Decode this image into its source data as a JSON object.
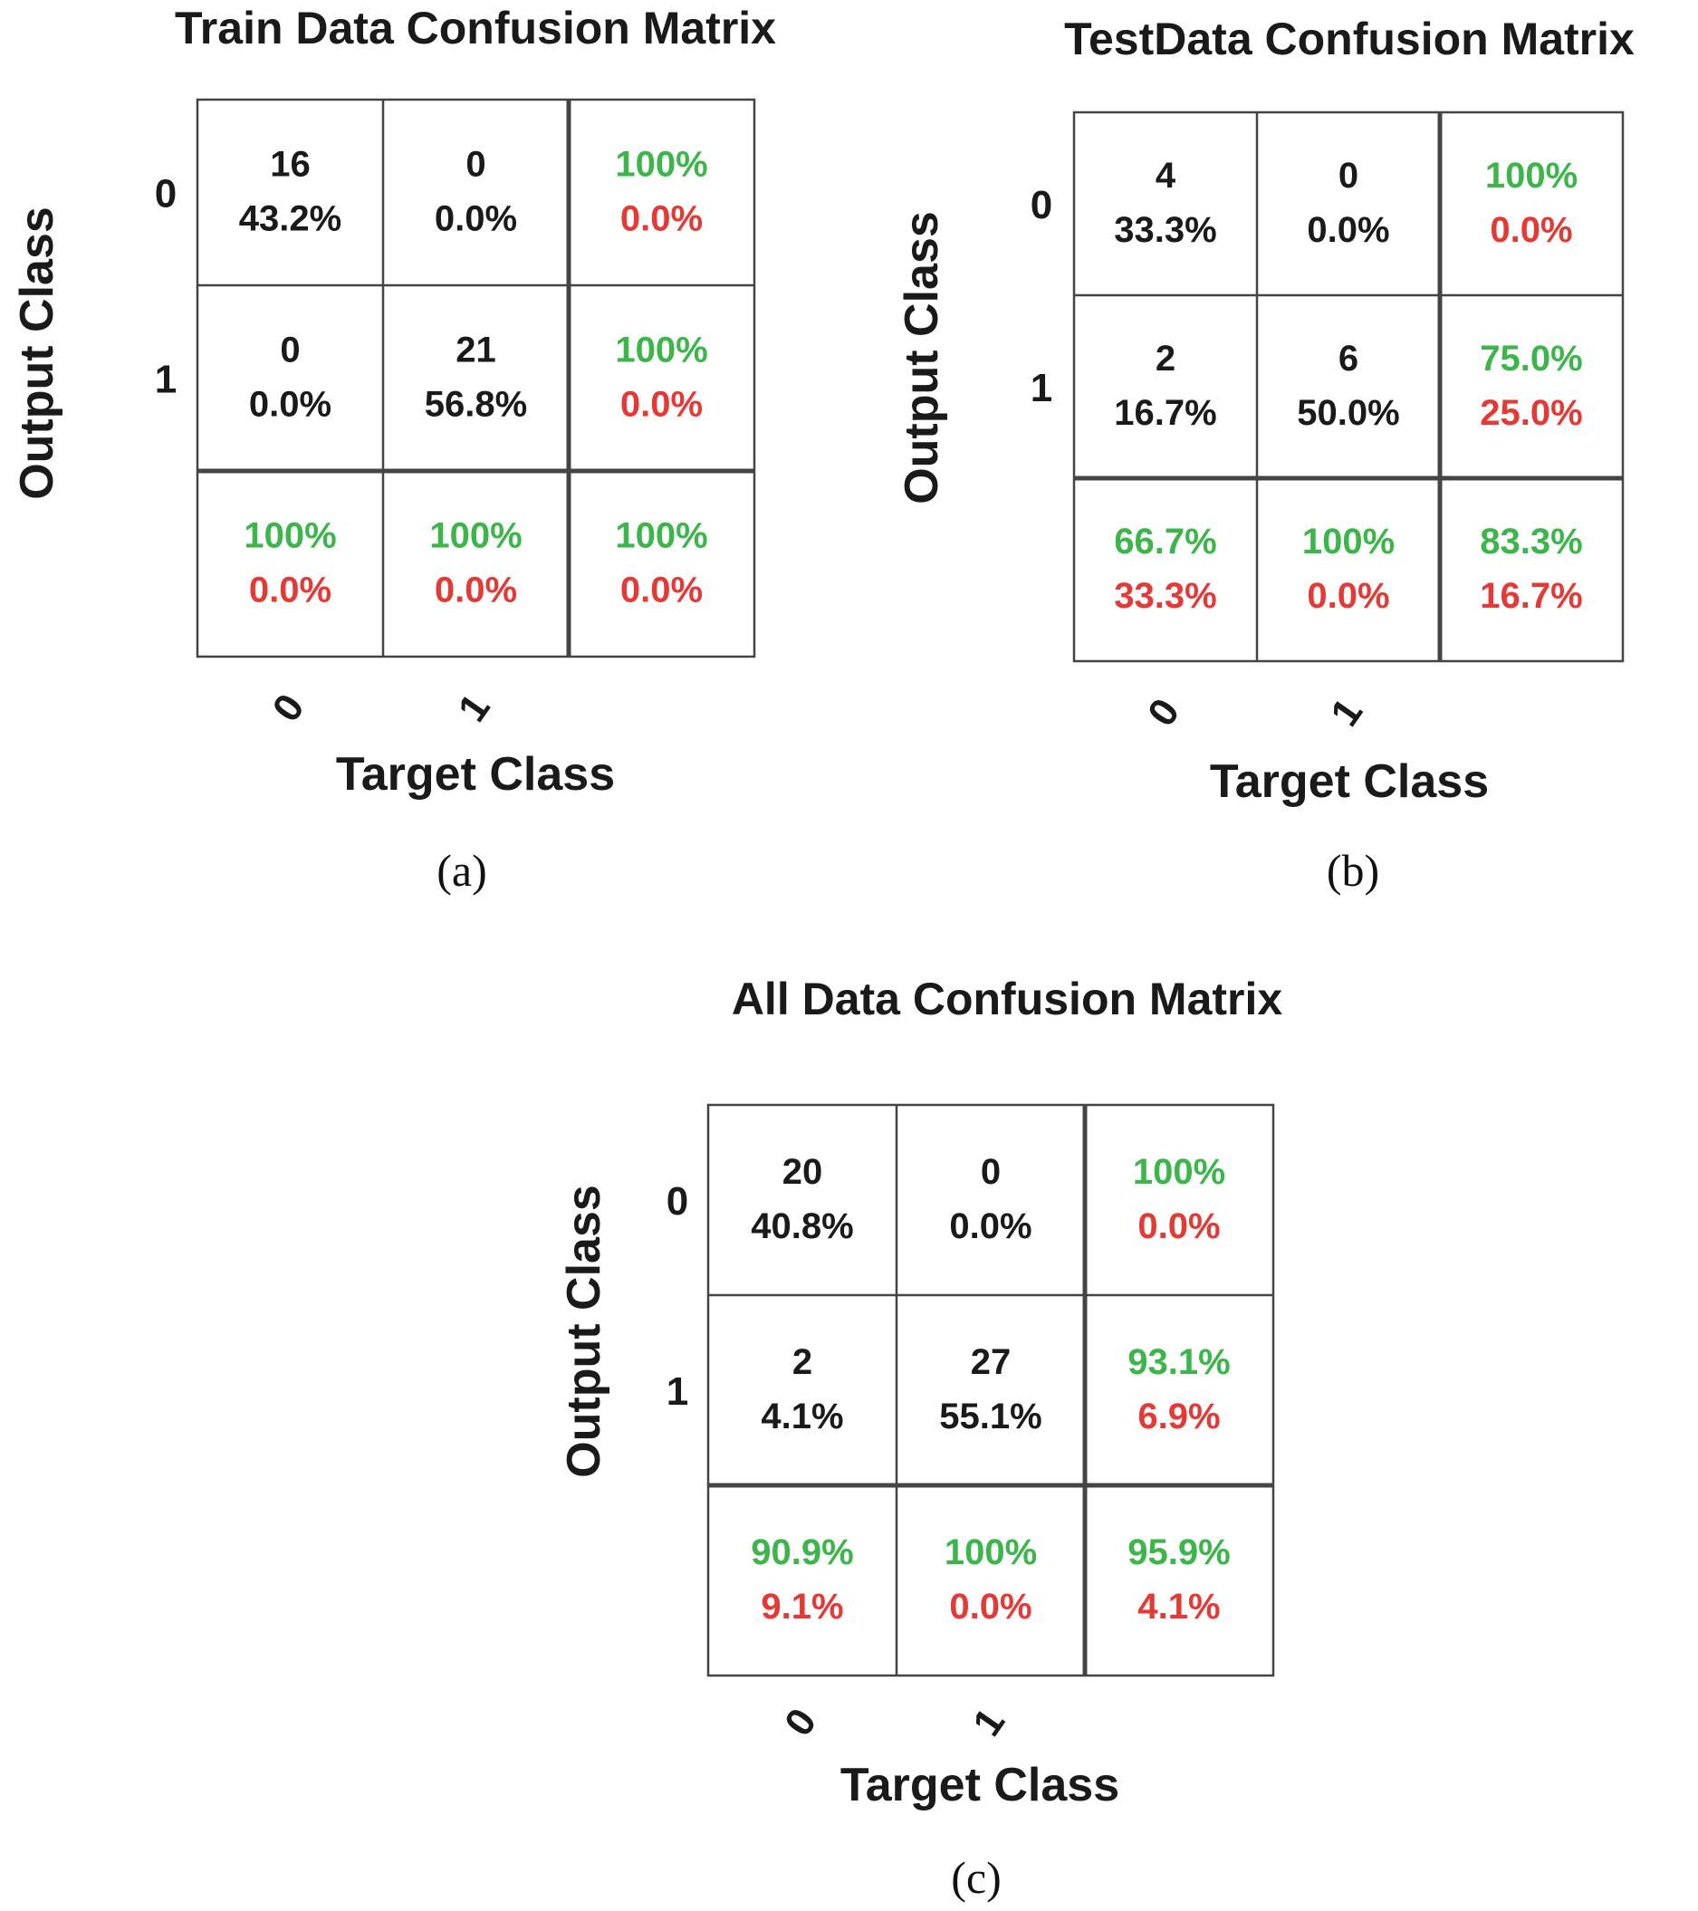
{
  "colors": {
    "text": "#1a1a1a",
    "correct": "#3cb54a",
    "error": "#e53935",
    "grid": "#444444"
  },
  "chart_data": [
    {
      "type": "table",
      "subtype": "confusion-matrix",
      "id": "train",
      "title": "Train Data Confusion Matrix",
      "caption": "(a)",
      "xlabel": "Target Class",
      "ylabel": "Output Class",
      "row_labels": [
        "0",
        "1"
      ],
      "col_labels": [
        "0",
        "1"
      ],
      "cells": [
        [
          {
            "count": "16",
            "pct": "43.2%"
          },
          {
            "count": "0",
            "pct": "0.0%"
          },
          {
            "correct": "100%",
            "error": "0.0%"
          }
        ],
        [
          {
            "count": "0",
            "pct": "0.0%"
          },
          {
            "count": "21",
            "pct": "56.8%"
          },
          {
            "correct": "100%",
            "error": "0.0%"
          }
        ],
        [
          {
            "correct": "100%",
            "error": "0.0%"
          },
          {
            "correct": "100%",
            "error": "0.0%"
          },
          {
            "correct": "100%",
            "error": "0.0%"
          }
        ]
      ]
    },
    {
      "type": "table",
      "subtype": "confusion-matrix",
      "id": "test",
      "title": "TestData Confusion Matrix",
      "caption": "(b)",
      "xlabel": "Target Class",
      "ylabel": "Output Class",
      "row_labels": [
        "0",
        "1"
      ],
      "col_labels": [
        "0",
        "1"
      ],
      "cells": [
        [
          {
            "count": "4",
            "pct": "33.3%"
          },
          {
            "count": "0",
            "pct": "0.0%"
          },
          {
            "correct": "100%",
            "error": "0.0%"
          }
        ],
        [
          {
            "count": "2",
            "pct": "16.7%"
          },
          {
            "count": "6",
            "pct": "50.0%"
          },
          {
            "correct": "75.0%",
            "error": "25.0%"
          }
        ],
        [
          {
            "correct": "66.7%",
            "error": "33.3%"
          },
          {
            "correct": "100%",
            "error": "0.0%"
          },
          {
            "correct": "83.3%",
            "error": "16.7%"
          }
        ]
      ]
    },
    {
      "type": "table",
      "subtype": "confusion-matrix",
      "id": "all",
      "title": "All Data Confusion Matrix",
      "caption": "(c)",
      "xlabel": "Target Class",
      "ylabel": "Output Class",
      "row_labels": [
        "0",
        "1"
      ],
      "col_labels": [
        "0",
        "1"
      ],
      "cells": [
        [
          {
            "count": "20",
            "pct": "40.8%"
          },
          {
            "count": "0",
            "pct": "0.0%"
          },
          {
            "correct": "100%",
            "error": "0.0%"
          }
        ],
        [
          {
            "count": "2",
            "pct": "4.1%"
          },
          {
            "count": "27",
            "pct": "55.1%"
          },
          {
            "correct": "93.1%",
            "error": "6.9%"
          }
        ],
        [
          {
            "correct": "90.9%",
            "error": "9.1%"
          },
          {
            "correct": "100%",
            "error": "0.0%"
          },
          {
            "correct": "95.9%",
            "error": "4.1%"
          }
        ]
      ]
    }
  ]
}
